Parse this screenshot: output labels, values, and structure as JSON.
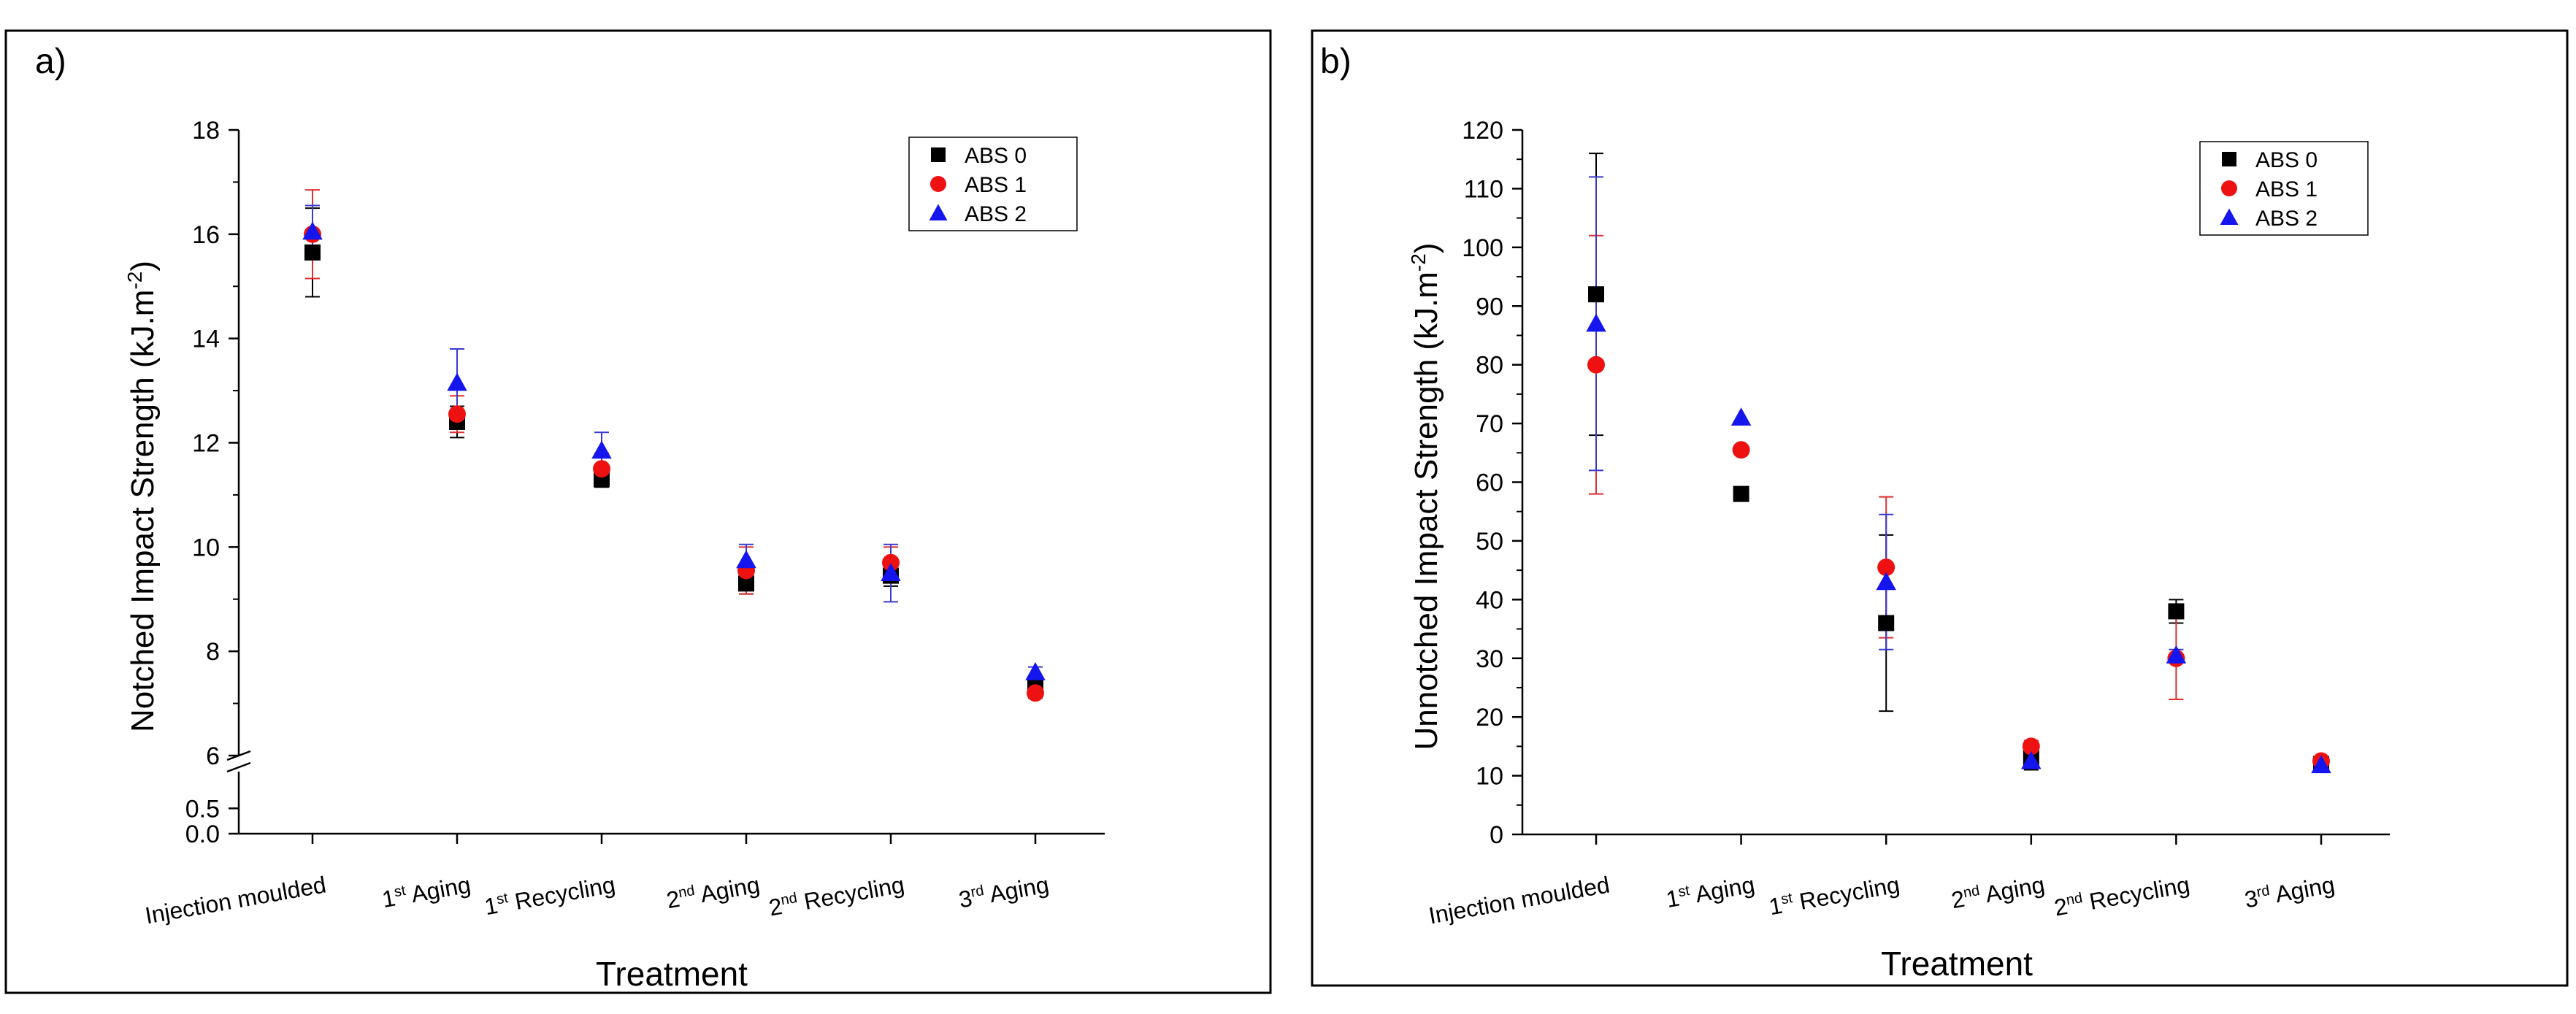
{
  "panel_a": {
    "label": "a)",
    "chart_data": {
      "type": "scatter",
      "title": "",
      "ylabel_text": "Notched Impact Strength (kJ.m",
      "ylabel_sup": "-2",
      "ylabel_close": ")",
      "xlabel": "Treatment",
      "axis_break": true,
      "ylim_lower": [
        0.0,
        0.75
      ],
      "ylim_upper": [
        6,
        18
      ],
      "yticks_lower": [
        "0.0",
        "0.5"
      ],
      "yticks_upper": [
        "6",
        "8",
        "10",
        "12",
        "14",
        "16",
        "18"
      ],
      "categories": [
        {
          "base": "Injection moulded",
          "sup": "",
          "tail": ""
        },
        {
          "base": "1",
          "sup": "st",
          "tail": " Aging"
        },
        {
          "base": "1",
          "sup": "st",
          "tail": " Recycling"
        },
        {
          "base": "2",
          "sup": "nd",
          "tail": " Aging"
        },
        {
          "base": "2",
          "sup": "nd",
          "tail": " Recycling"
        },
        {
          "base": "3",
          "sup": "rd",
          "tail": " Aging"
        }
      ],
      "series": [
        {
          "name": "ABS 0",
          "marker": "square",
          "color": "#000000",
          "err_color": "#000000",
          "values": [
            15.65,
            12.4,
            11.3,
            9.3,
            9.45,
            7.35
          ],
          "errors": [
            0.85,
            0.3,
            0.15,
            0.2,
            0.2,
            0.1
          ]
        },
        {
          "name": "ABS 1",
          "marker": "circle",
          "color": "#ee1111",
          "err_color": "#dd3030",
          "values": [
            16.0,
            12.55,
            11.5,
            9.55,
            9.7,
            7.2
          ],
          "errors": [
            0.85,
            0.35,
            0.3,
            0.45,
            0.3,
            0.1
          ]
        },
        {
          "name": "ABS 2",
          "marker": "triangle",
          "color": "#1515ee",
          "err_color": "#3a3ad0",
          "values": [
            16.05,
            13.15,
            11.85,
            9.75,
            9.5,
            7.6
          ],
          "errors": [
            0.5,
            0.65,
            0.35,
            0.3,
            0.55,
            0.1
          ]
        }
      ],
      "legend": [
        "ABS 0",
        "ABS 1",
        "ABS 2"
      ],
      "legend_position": "top-right"
    }
  },
  "panel_b": {
    "label": "b)",
    "chart_data": {
      "type": "scatter",
      "title": "",
      "ylabel_text": "Unnotched Impact Strength (kJ.m",
      "ylabel_sup": "-2",
      "ylabel_close": ")",
      "xlabel": "Treatment",
      "ylim": [
        0,
        120
      ],
      "yticks": [
        "0",
        "10",
        "20",
        "30",
        "40",
        "50",
        "60",
        "70",
        "80",
        "90",
        "100",
        "110",
        "120"
      ],
      "categories": [
        {
          "base": "Injection moulded",
          "sup": "",
          "tail": ""
        },
        {
          "base": "1",
          "sup": "st",
          "tail": " Aging"
        },
        {
          "base": "1",
          "sup": "st",
          "tail": " Recycling"
        },
        {
          "base": "2",
          "sup": "nd",
          "tail": " Aging"
        },
        {
          "base": "2",
          "sup": "nd",
          "tail": " Recycling"
        },
        {
          "base": "3",
          "sup": "rd",
          "tail": " Aging"
        }
      ],
      "series": [
        {
          "name": "ABS 0",
          "marker": "square",
          "color": "#000000",
          "err_color": "#000000",
          "values": [
            92,
            58,
            36,
            13,
            38,
            12
          ],
          "errors": [
            24,
            0,
            15,
            2,
            2,
            0.5
          ]
        },
        {
          "name": "ABS 1",
          "marker": "circle",
          "color": "#ee1111",
          "err_color": "#dd3030",
          "values": [
            80,
            65.5,
            45.5,
            15,
            30,
            12.5
          ],
          "errors": [
            22,
            0,
            12,
            1,
            7,
            0.5
          ]
        },
        {
          "name": "ABS 2",
          "marker": "triangle",
          "color": "#1515ee",
          "err_color": "#3a3ad0",
          "values": [
            87,
            71,
            43,
            12.5,
            30.5,
            11.8
          ],
          "errors": [
            25,
            0,
            11.5,
            1,
            1,
            0.5
          ]
        }
      ],
      "legend": [
        "ABS 0",
        "ABS 1",
        "ABS 2"
      ],
      "legend_position": "top-right"
    }
  }
}
